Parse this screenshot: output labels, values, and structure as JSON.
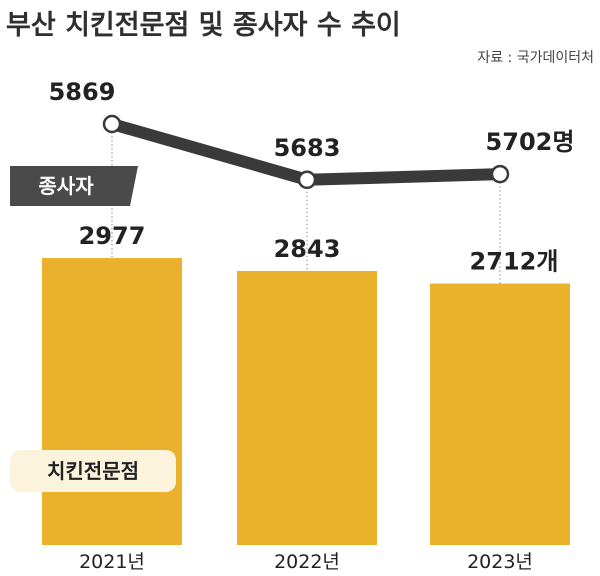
{
  "title": "부산 치킨전문점 및 종사자 수 추이",
  "source": "자료 : 국가데이터처",
  "colors": {
    "bar": "#e9b12c",
    "line": "#3a3a3a",
    "badge_dark": "#4a4a4a",
    "badge_light": "#fbf3dc",
    "text": "#222222"
  },
  "chart_data": {
    "type": "bar",
    "categories": [
      "2021년",
      "2022년",
      "2023년"
    ],
    "series": [
      {
        "name": "치킨전문점",
        "type": "bar",
        "values": [
          2977,
          2843,
          2712
        ],
        "labels": [
          "2977",
          "2843",
          "2712개"
        ]
      },
      {
        "name": "종사자",
        "type": "line",
        "values": [
          5869,
          5683,
          5702
        ],
        "labels": [
          "5869",
          "5683",
          "5702명"
        ]
      }
    ],
    "legend": [
      "종사자",
      "치킨전문점"
    ],
    "grid": false
  }
}
